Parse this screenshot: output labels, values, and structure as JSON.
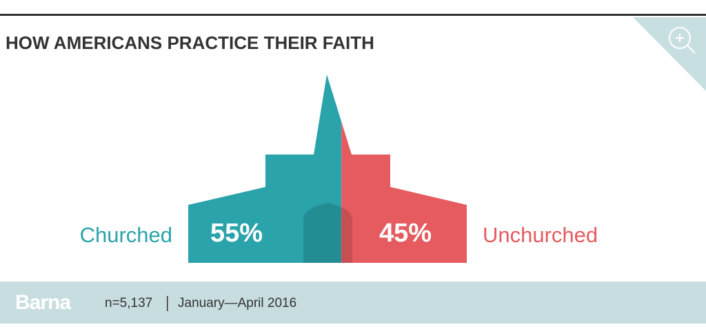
{
  "chart_data": {
    "type": "split",
    "title": "HOW AMERICANS PRACTICE THEIR FAITH",
    "series": [
      {
        "name": "Churched",
        "color": "#2aa3ab",
        "values": [
          55
        ],
        "value_labels": [
          "55%"
        ]
      },
      {
        "name": "Unchurched",
        "color": "#e55b5f",
        "values": [
          45
        ],
        "value_labels": [
          "45%"
        ]
      }
    ]
  },
  "footer": {
    "brand": "Barna",
    "sample": "n=5,137",
    "period": "January—April 2016"
  }
}
